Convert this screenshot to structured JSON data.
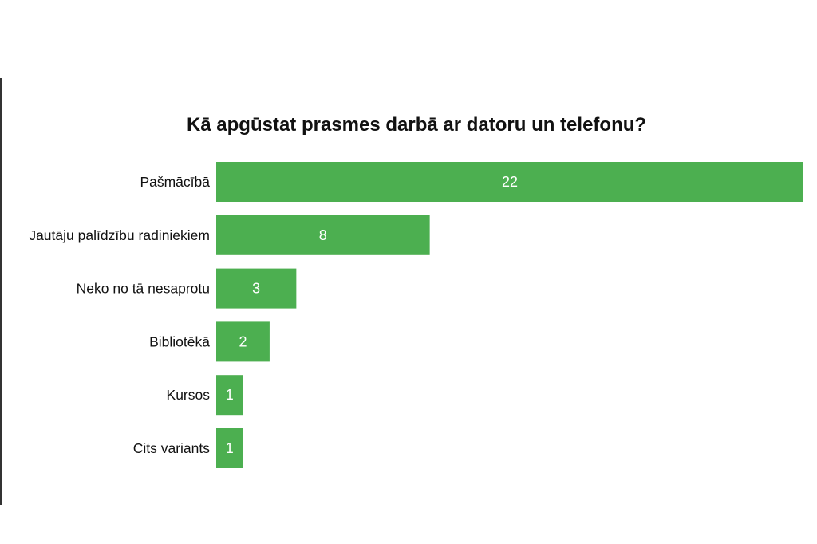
{
  "chart_data": {
    "type": "bar",
    "orientation": "horizontal",
    "title": "Kā apgūstat prasmes darbā ar datoru un telefonu?",
    "categories": [
      "Pašmācībā",
      "Jautāju palīdzību radiniekiem",
      "Neko no tā nesaprotu",
      "Bibliotēkā",
      "Kursos",
      "Cits variants"
    ],
    "values": [
      22,
      8,
      3,
      2,
      1,
      1
    ],
    "bar_color": "#4caf50",
    "value_label_color": "#ffffff",
    "grid": false
  }
}
